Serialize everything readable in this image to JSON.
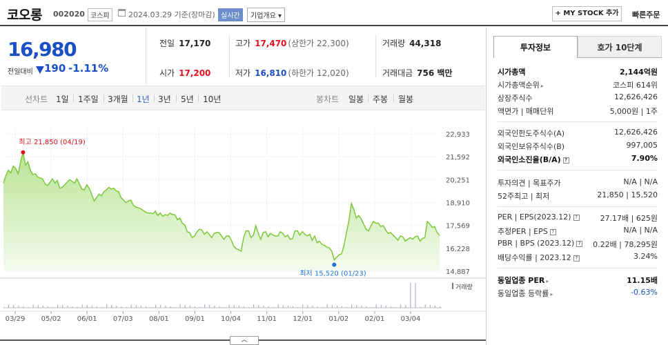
{
  "header": {
    "name": "코오롱",
    "code": "002020",
    "market": "코스피",
    "date": "2024.03.29 기준(장마감)",
    "realtime": "실시간",
    "corp_info": "기업개요 ▾",
    "mystock": "+ MY STOCK 추가",
    "quick_order": "빠른주문"
  },
  "price": {
    "current": "16,980",
    "change_label": "전일대비",
    "change": "190",
    "rate": "-1.11%"
  },
  "quote": {
    "prev_label": "전일",
    "prev": "17,170",
    "high_label": "고가",
    "high": "17,470",
    "upper_limit": "(상한가 22,300)",
    "volume_label": "거래량",
    "volume": "44,318",
    "open_label": "시가",
    "open": "17,200",
    "low_label": "저가",
    "low": "16,810",
    "lower_limit": "(하한가 12,020)",
    "amount_label": "거래대금",
    "amount": "756 백만"
  },
  "periods": {
    "line_label": "선차트",
    "items": [
      "1일",
      "1주일",
      "3개월",
      "1년",
      "3년",
      "5년",
      "10년"
    ],
    "active": "1년",
    "candle_label": "봉차트",
    "candles": [
      "일봉",
      "주봉",
      "월봉"
    ]
  },
  "chart_data": {
    "type": "area",
    "x_ticks": [
      "03/29",
      "05/02",
      "06/01",
      "07/03",
      "08/01",
      "09/01",
      "10/04",
      "11/01",
      "12/01",
      "01/02",
      "02/01",
      "03/04"
    ],
    "y_ticks": [
      "22,933",
      "21,592",
      "20,251",
      "18,910",
      "17,569",
      "16,228",
      "14,887"
    ],
    "ylim": [
      14887,
      22933
    ],
    "high_label": "최고 21,850 (04/19)",
    "low_label": "최저 15,520 (01/23)",
    "volume_label": "거래량",
    "colors": {
      "line": "#7cc83a",
      "fill_top": "#b9e394",
      "fill_bottom": "#f4fbee",
      "high": "#e1101b",
      "low": "#1a73d9"
    },
    "values": [
      20050,
      20500,
      20800,
      20650,
      21050,
      20900,
      20600,
      21300,
      21850,
      21100,
      21300,
      20800,
      20550,
      20600,
      20400,
      20350,
      20300,
      20000,
      19900,
      20100,
      20300,
      20050,
      20200,
      19750,
      19800,
      19950,
      20100,
      20250,
      20150,
      20050,
      20300,
      20000,
      19700,
      19650,
      19950,
      19750,
      19400,
      19000,
      19200,
      19400,
      19300,
      19550,
      19650,
      19800,
      19700,
      19750,
      19600,
      19550,
      19200,
      19050,
      18900,
      19000,
      19050,
      18750,
      18650,
      18600,
      18550,
      18450,
      18350,
      18300,
      18300,
      18250,
      18400,
      18150,
      18300,
      18100,
      18200,
      18150,
      18300,
      18200,
      18200,
      17900,
      18000,
      17700,
      17600,
      17200,
      17150,
      16850,
      16950,
      17200,
      17350,
      17300,
      17050,
      17200,
      17050,
      16850,
      17100,
      17150,
      17150,
      16950,
      16750,
      16950,
      16950,
      16700,
      16350,
      16200,
      16150,
      16050,
      16850,
      17250,
      17250,
      16850,
      17000,
      17550,
      17100,
      16750,
      17150,
      17200,
      16900,
      17100,
      17000,
      16950,
      16950,
      17200,
      17100,
      16900,
      17000,
      16750,
      16800,
      17250,
      17250,
      17000,
      17200,
      17050,
      16950,
      17050,
      16700,
      16950,
      16550,
      16650,
      16450,
      16400,
      16300,
      16250,
      16050,
      15550,
      15700,
      15850,
      15900,
      16400,
      17150,
      17850,
      18850,
      18500,
      18000,
      18150,
      17950,
      17650,
      17350,
      17250,
      17550,
      17800,
      17700,
      17700,
      17500,
      17550,
      17300,
      17100,
      17150,
      17000,
      16850,
      16700,
      16950,
      16900,
      16650,
      16750,
      16850,
      16750,
      16900,
      16950,
      16650,
      16800,
      16850,
      17800,
      17650,
      17450,
      17500,
      17150,
      16980
    ]
  },
  "side": {
    "tab_active": "투자정보",
    "tab_inactive": "호가 10단계",
    "rows": [
      {
        "k": "시가총액",
        "v": "2,144억원"
      },
      {
        "k": "시가총액순위",
        "v": "코스피 614위"
      },
      {
        "k": "상장주식수",
        "v": "12,626,426"
      },
      {
        "k": "액면가 | 매매단위",
        "v": "5,000원 | 1주"
      },
      {
        "k": "외국인한도주식수(A)",
        "v": "12,626,426"
      },
      {
        "k": "외국인보유주식수(B)",
        "v": "997,005"
      },
      {
        "k": "외국인소진율(B/A)",
        "v": "7.90%"
      },
      {
        "k": "투자의견 | 목표주가",
        "v": "N/A | N/A"
      },
      {
        "k": "52주최고 | 최저",
        "v": "21,850 | 15,520"
      },
      {
        "k": "PER | EPS(2023.12)",
        "v": "27.17배 | 625원"
      },
      {
        "k": "추정PER | EPS",
        "v": "N/A | N/A"
      },
      {
        "k": "PBR | BPS (2023.12)",
        "v": "0.22배 | 78,295원"
      },
      {
        "k": "배당수익률 | 2023.12",
        "v": "3.24%"
      },
      {
        "k": "동일업종 PER",
        "v": "11.15배"
      },
      {
        "k": "동일업종 등락률",
        "v": "-0.63%"
      }
    ]
  }
}
